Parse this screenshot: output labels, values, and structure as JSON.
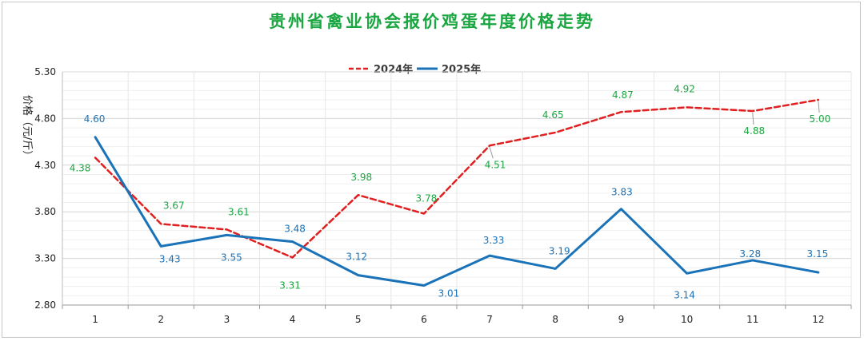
{
  "chart_data": {
    "type": "line",
    "title": "贵州省禽业协会报价鸡蛋年度价格走势",
    "ylabel": "价格（元/斤）",
    "xlabel": "",
    "categories": [
      "1",
      "2",
      "3",
      "4",
      "5",
      "6",
      "7",
      "8",
      "9",
      "10",
      "11",
      "12"
    ],
    "ylim": [
      2.8,
      5.3
    ],
    "yticks": [
      "2.80",
      "3.30",
      "3.80",
      "4.30",
      "4.80",
      "5.30"
    ],
    "grid": true,
    "legend_position": "top-center",
    "series": [
      {
        "name": "2024年",
        "style": "dashed",
        "color": "#e02020",
        "label_color": "#1aa640",
        "values": [
          4.38,
          3.67,
          3.61,
          3.31,
          3.98,
          3.78,
          4.51,
          4.65,
          4.87,
          4.92,
          4.88,
          5.0
        ],
        "labels": [
          "4.38",
          "3.67",
          "3.61",
          "3.31",
          "3.98",
          "3.78",
          "4.51",
          "4.65",
          "4.87",
          "4.92",
          "4.88",
          "5.00"
        ]
      },
      {
        "name": "2025年",
        "style": "solid",
        "color": "#1a72b8",
        "label_color": "#1a72b8",
        "values": [
          4.6,
          3.43,
          3.55,
          3.48,
          3.12,
          3.01,
          3.33,
          3.19,
          3.83,
          3.14,
          3.28,
          3.15
        ],
        "labels": [
          "4.60",
          "3.43",
          "3.55",
          "3.48",
          "3.12",
          "3.01",
          "3.33",
          "3.19",
          "3.83",
          "3.14",
          "3.28",
          "3.15"
        ]
      }
    ]
  }
}
